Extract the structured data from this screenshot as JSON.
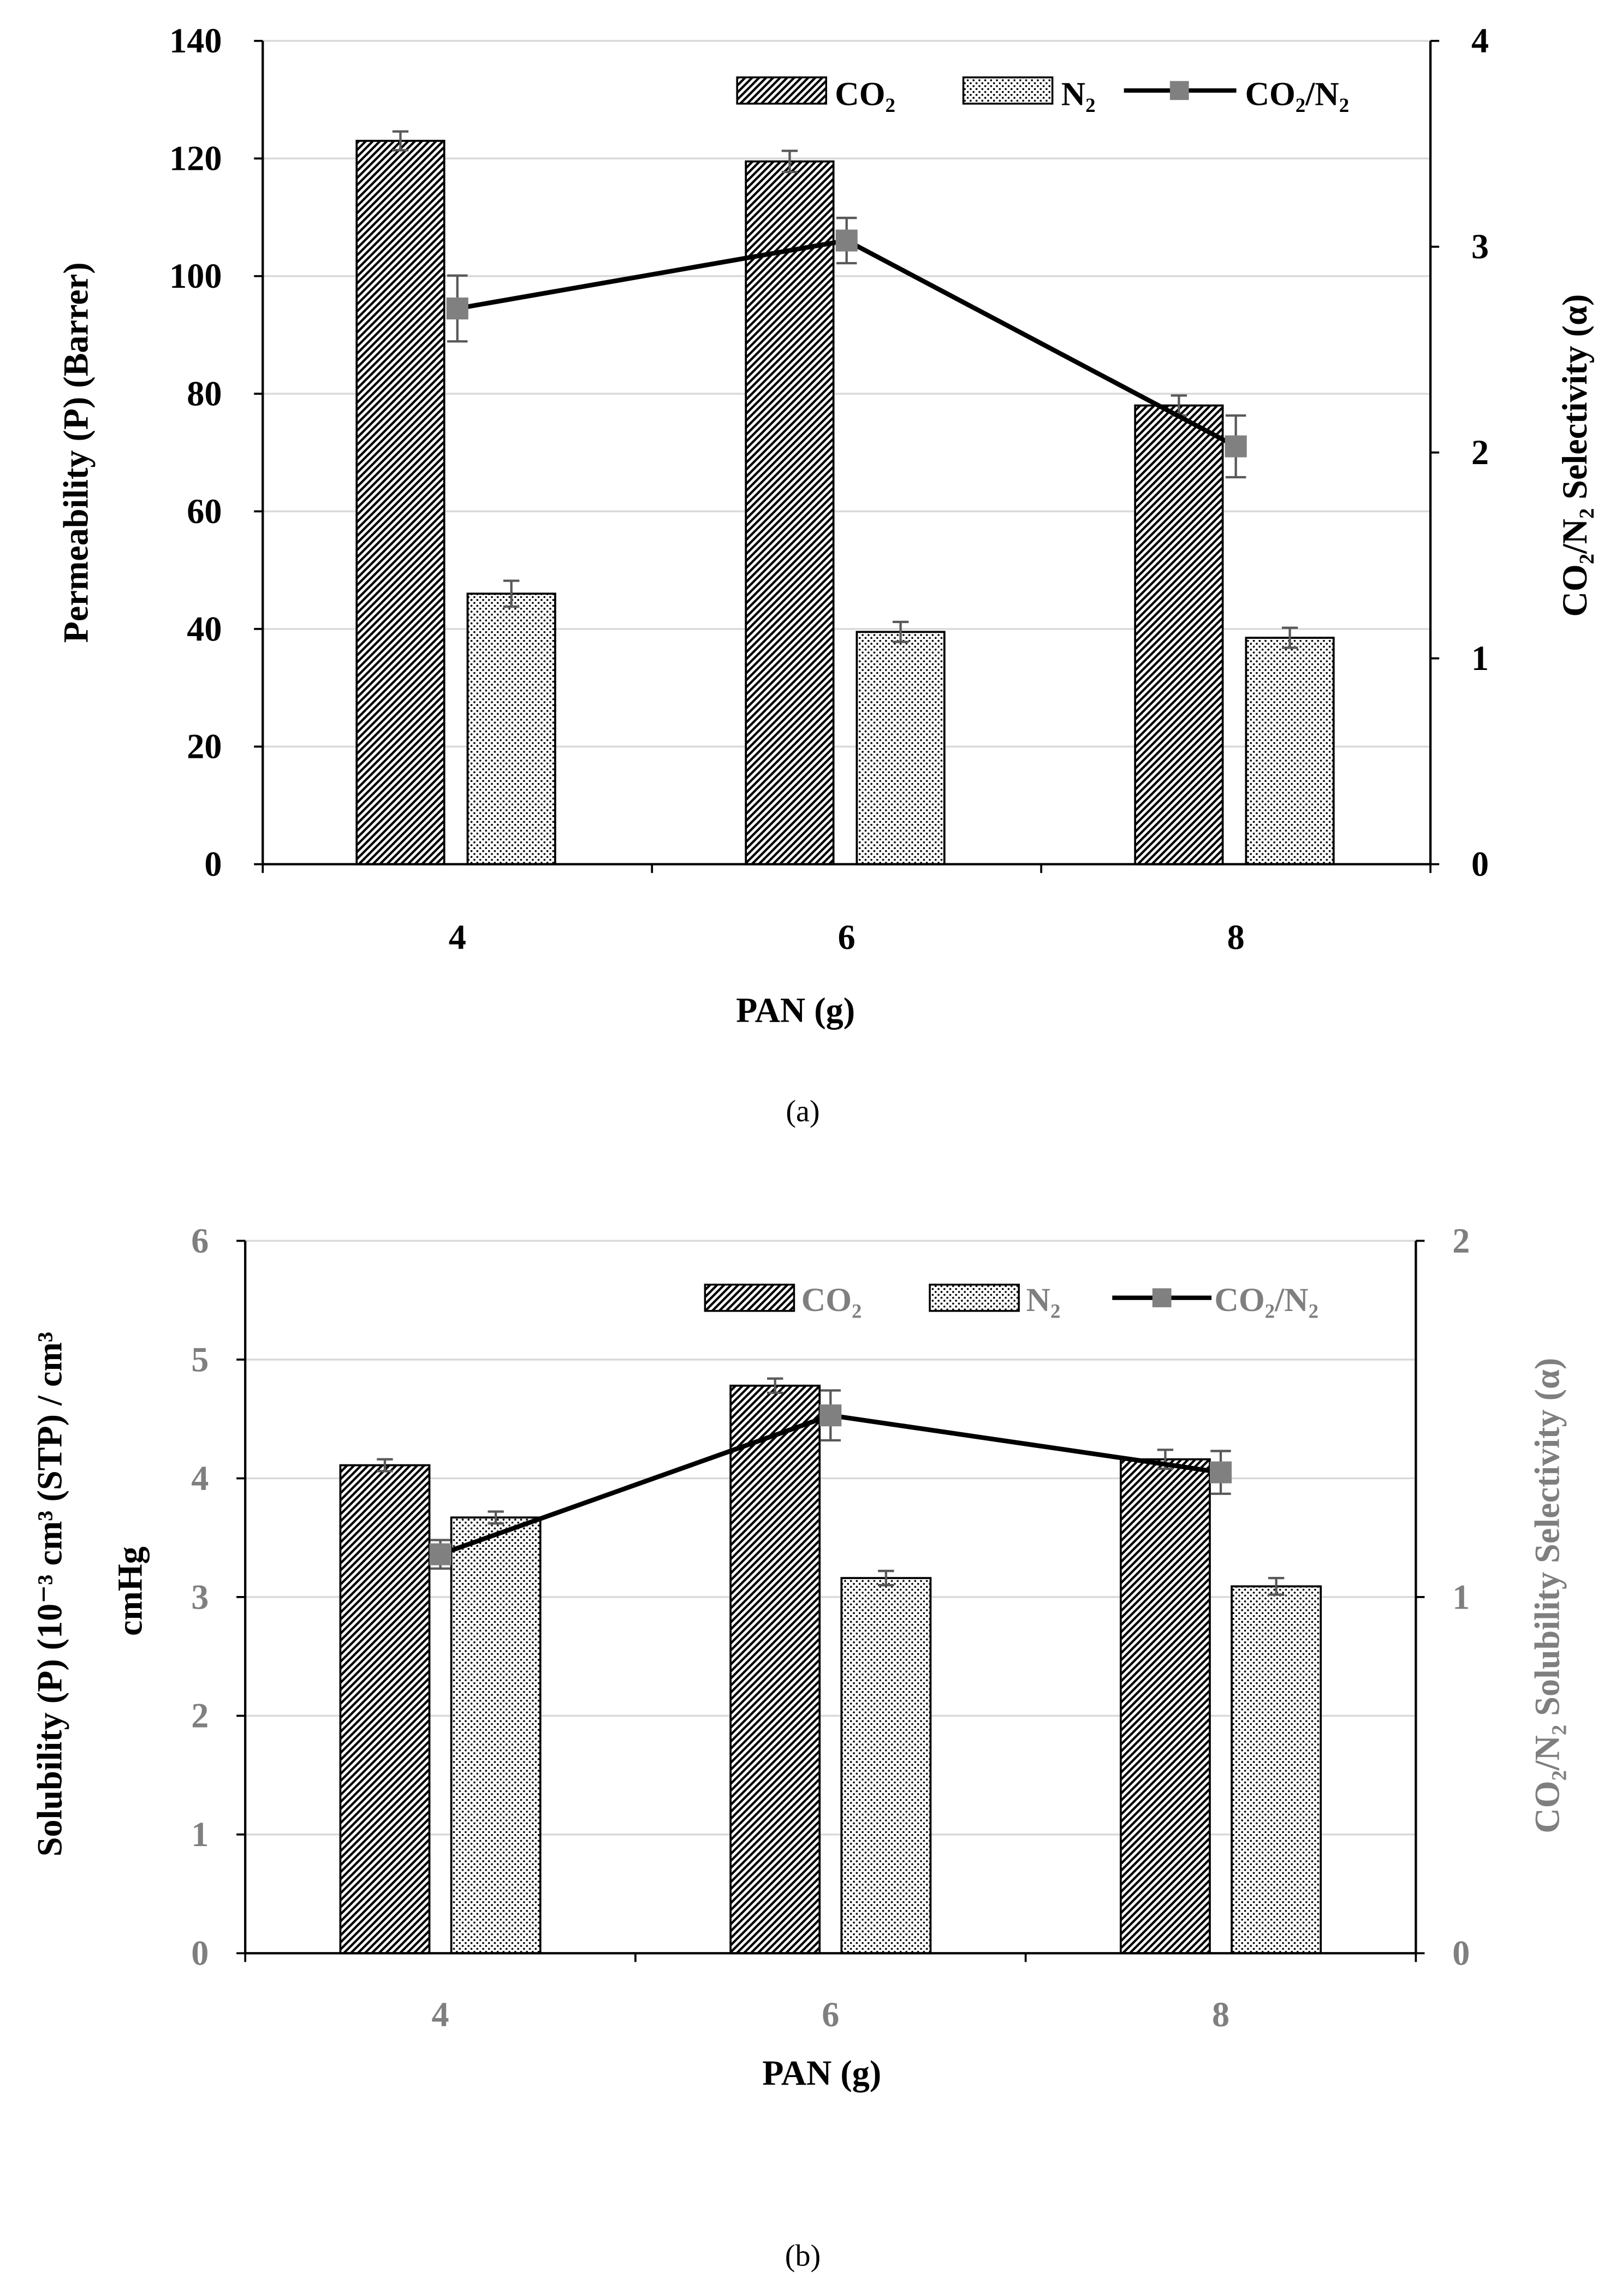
{
  "chart_data": [
    {
      "panel_label": "(a)",
      "type": "bar",
      "categories": [
        "4",
        "6",
        "8"
      ],
      "xlabel": "PAN (g)",
      "ylabel": [
        "Permeability (P) (Barrer)"
      ],
      "y2label": "CO₂/N₂ Selectivity (α)",
      "ylim": [
        0,
        140
      ],
      "yticks": [
        0,
        20,
        40,
        60,
        80,
        100,
        120,
        140
      ],
      "y2lim": [
        0,
        4
      ],
      "y2ticks": [
        0,
        1,
        2,
        3,
        4
      ],
      "grid": true,
      "legend_position": "top-right",
      "tick_label_color": "#000000",
      "y2_tick_label_color": "#000000",
      "y2label_color": "#000000",
      "legend_text_color": "#000000",
      "series": [
        {
          "name": "CO₂",
          "type": "bar",
          "axis": "left",
          "pattern": "diagonal-hatch",
          "values": [
            123,
            119.5,
            78
          ],
          "errors": [
            1.6,
            1.8,
            1.7
          ]
        },
        {
          "name": "N₂",
          "type": "bar",
          "axis": "left",
          "pattern": "dots",
          "values": [
            46,
            39.5,
            38.5
          ],
          "errors": [
            2.2,
            1.7,
            1.7
          ]
        },
        {
          "name": "CO₂/N₂",
          "type": "line",
          "axis": "right",
          "marker": "square",
          "values": [
            2.7,
            3.03,
            2.03
          ],
          "errors": [
            0.16,
            0.11,
            0.15
          ]
        }
      ]
    },
    {
      "panel_label": "(b)",
      "type": "bar",
      "categories": [
        "4",
        "6",
        "8"
      ],
      "xlabel": "PAN (g)",
      "ylabel": [
        "Solubility (P) (10⁻³ cm³ (STP) / cm³",
        "cmHg"
      ],
      "y2label": "CO₂/N₂ Solubility Selectivity (α)",
      "ylim": [
        0,
        6
      ],
      "yticks": [
        0,
        1,
        2,
        3,
        4,
        5,
        6
      ],
      "y2lim": [
        0,
        2
      ],
      "y2ticks": [
        0,
        1,
        2
      ],
      "grid": true,
      "legend_position": "top-right",
      "tick_label_color": "#7f7f7f",
      "y2_tick_label_color": "#7f7f7f",
      "y2label_color": "#7f7f7f",
      "legend_text_color": "#7f7f7f",
      "series": [
        {
          "name": "CO₂",
          "type": "bar",
          "axis": "left",
          "pattern": "diagonal-hatch",
          "values": [
            4.11,
            4.78,
            4.16
          ],
          "errors": [
            0.05,
            0.06,
            0.08
          ]
        },
        {
          "name": "N₂",
          "type": "bar",
          "axis": "left",
          "pattern": "dots",
          "values": [
            3.67,
            3.16,
            3.09
          ],
          "errors": [
            0.05,
            0.06,
            0.07
          ]
        },
        {
          "name": "CO₂/N₂",
          "type": "line",
          "axis": "right",
          "marker": "square",
          "values": [
            1.12,
            1.51,
            1.35
          ],
          "errors": [
            0.04,
            0.07,
            0.06
          ]
        }
      ]
    }
  ],
  "colors": {
    "axis": "#000000",
    "grid": "#d9d9d9",
    "bar_outline": "#000000",
    "errorbar": "#595959",
    "line": "#000000",
    "marker": "#808080",
    "background": "#ffffff"
  }
}
